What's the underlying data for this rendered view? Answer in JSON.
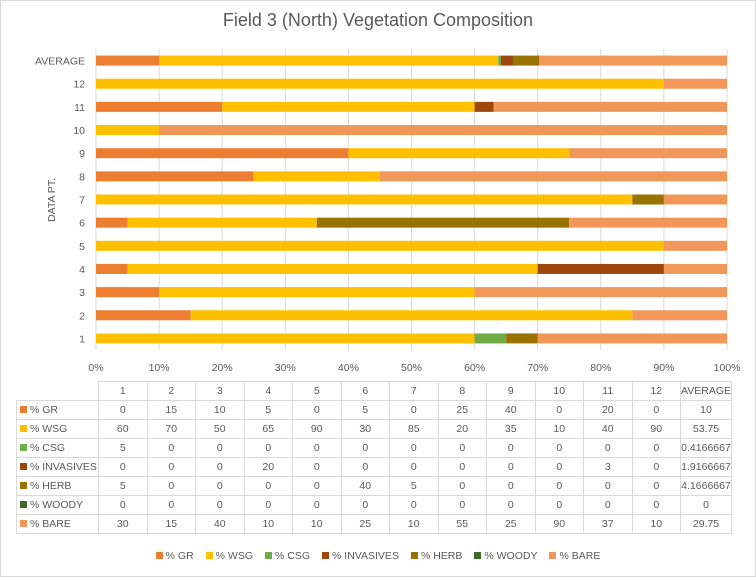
{
  "chart_data": {
    "type": "bar",
    "orientation": "horizontal",
    "stacked": "percent",
    "title": "Field 3 (North) Vegetation Composition",
    "ylabel": "DATA PT.",
    "xlabel": "",
    "xlim": [
      0,
      100
    ],
    "x_ticks": [
      "0%",
      "10%",
      "20%",
      "30%",
      "40%",
      "50%",
      "60%",
      "70%",
      "80%",
      "90%",
      "100%"
    ],
    "grid": true,
    "legend_position": "bottom",
    "categories": [
      "1",
      "2",
      "3",
      "4",
      "5",
      "6",
      "7",
      "8",
      "9",
      "10",
      "11",
      "12",
      "AVERAGE"
    ],
    "series": [
      {
        "name": "% GR",
        "color": "#ED7D31",
        "values": [
          0,
          15,
          10,
          5,
          0,
          5,
          0,
          25,
          40,
          0,
          20,
          0,
          10
        ],
        "display": [
          "0",
          "15",
          "10",
          "5",
          "0",
          "5",
          "0",
          "25",
          "40",
          "0",
          "20",
          "0",
          "10"
        ]
      },
      {
        "name": "% WSG",
        "color": "#FFC000",
        "values": [
          60,
          70,
          50,
          65,
          90,
          30,
          85,
          20,
          35,
          10,
          40,
          90,
          53.75
        ],
        "display": [
          "60",
          "70",
          "50",
          "65",
          "90",
          "30",
          "85",
          "20",
          "35",
          "10",
          "40",
          "90",
          "53.75"
        ]
      },
      {
        "name": "% CSG",
        "color": "#70AD47",
        "values": [
          5,
          0,
          0,
          0,
          0,
          0,
          0,
          0,
          0,
          0,
          0,
          0,
          0.4166667
        ],
        "display": [
          "5",
          "0",
          "0",
          "0",
          "0",
          "0",
          "0",
          "0",
          "0",
          "0",
          "0",
          "0",
          "0.4166667"
        ]
      },
      {
        "name": "% INVASIVES",
        "color": "#9E480E",
        "values": [
          0,
          0,
          0,
          20,
          0,
          0,
          0,
          0,
          0,
          0,
          3,
          0,
          1.9166667
        ],
        "display": [
          "0",
          "0",
          "0",
          "20",
          "0",
          "0",
          "0",
          "0",
          "0",
          "0",
          "3",
          "0",
          "1.9166667"
        ]
      },
      {
        "name": "% HERB",
        "color": "#997300",
        "values": [
          5,
          0,
          0,
          0,
          0,
          40,
          5,
          0,
          0,
          0,
          0,
          0,
          4.1666667
        ],
        "display": [
          "5",
          "0",
          "0",
          "0",
          "0",
          "40",
          "5",
          "0",
          "0",
          "0",
          "0",
          "0",
          "4.1666667"
        ]
      },
      {
        "name": "% WOODY",
        "color": "#43682B",
        "values": [
          0,
          0,
          0,
          0,
          0,
          0,
          0,
          0,
          0,
          0,
          0,
          0,
          0
        ],
        "display": [
          "0",
          "0",
          "0",
          "0",
          "0",
          "0",
          "0",
          "0",
          "0",
          "0",
          "0",
          "0",
          "0"
        ]
      },
      {
        "name": "% BARE",
        "color": "#F1975A",
        "values": [
          30,
          15,
          40,
          10,
          10,
          25,
          10,
          55,
          25,
          90,
          37,
          10,
          29.75
        ],
        "display": [
          "30",
          "15",
          "40",
          "10",
          "10",
          "25",
          "10",
          "55",
          "25",
          "90",
          "37",
          "10",
          "29.75"
        ]
      }
    ]
  }
}
